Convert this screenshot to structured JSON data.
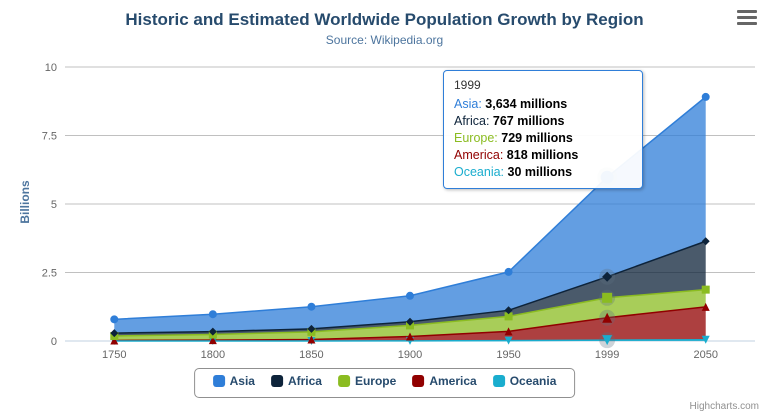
{
  "chart_data": {
    "type": "area",
    "stacking": "normal",
    "title": "Historic and Estimated Worldwide Population Growth by Region",
    "subtitle": "Source: Wikipedia.org",
    "categories": [
      "1750",
      "1800",
      "1850",
      "1900",
      "1950",
      "1999",
      "2050"
    ],
    "ylabel": "Billions",
    "ylim": [
      0,
      10
    ],
    "yticks": [
      0,
      2.5,
      5,
      7.5,
      10
    ],
    "unit": "millions",
    "legend_position": "bottom",
    "grid": true,
    "series": [
      {
        "name": "Asia",
        "color": "#2f7ed8",
        "marker": "circle",
        "values": [
          502,
          635,
          809,
          947,
          1402,
          3634,
          5268
        ]
      },
      {
        "name": "Africa",
        "color": "#0d233a",
        "marker": "diamond",
        "values": [
          106,
          107,
          111,
          133,
          221,
          767,
          1766
        ]
      },
      {
        "name": "Europe",
        "color": "#8bbc21",
        "marker": "square",
        "values": [
          163,
          203,
          276,
          408,
          547,
          729,
          628
        ]
      },
      {
        "name": "America",
        "color": "#910000",
        "marker": "triangle",
        "values": [
          18,
          31,
          54,
          156,
          339,
          818,
          1201
        ]
      },
      {
        "name": "Oceania",
        "color": "#1aadce",
        "marker": "triangle-down",
        "values": [
          2,
          2,
          2,
          6,
          13,
          30,
          46
        ]
      }
    ],
    "tooltip": {
      "header": "1999",
      "hover_index": 5,
      "rows": [
        {
          "name": "Asia",
          "color": "#2f7ed8",
          "value": "3,634 millions"
        },
        {
          "name": "Africa",
          "color": "#0d233a",
          "value": "767 millions"
        },
        {
          "name": "Europe",
          "color": "#8bbc21",
          "value": "729 millions"
        },
        {
          "name": "America",
          "color": "#910000",
          "value": "818 millions"
        },
        {
          "name": "Oceania",
          "color": "#1aadce",
          "value": "30 millions"
        }
      ]
    },
    "credit": "Highcharts.com"
  }
}
